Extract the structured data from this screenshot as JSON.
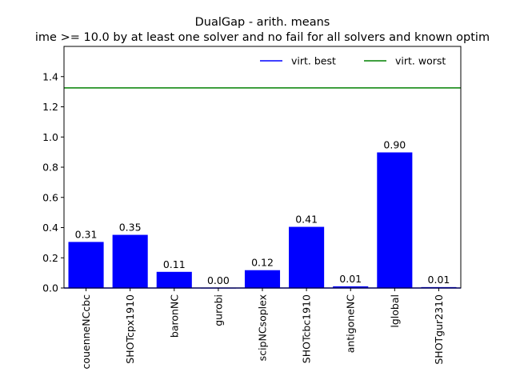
{
  "chart_data": {
    "type": "bar",
    "title": "DualGap - arith. means",
    "subtitle": "ime >= 10.0 by at least one solver and no fail for all solvers and known optim",
    "xlabel": "",
    "ylabel": "",
    "categories": [
      "couenneNCcbc",
      "SHOTcpx1910",
      "baronNC",
      "gurobi",
      "scipNCsoplex",
      "SHOTcbc1910",
      "antigoneNC",
      "lglobal",
      "SHOTgur2310"
    ],
    "values": [
      0.305,
      0.352,
      0.107,
      0.001,
      0.118,
      0.405,
      0.011,
      0.898,
      0.006
    ],
    "data_labels": [
      "0.31",
      "0.35",
      "0.11",
      "0.00",
      "0.12",
      "0.41",
      "0.01",
      "0.90",
      "0.01"
    ],
    "ylim": [
      0,
      1.6
    ],
    "yticks": [
      0.0,
      0.2,
      0.4,
      0.6,
      0.8,
      1.0,
      1.2,
      1.4
    ],
    "ytick_labels": [
      "0.0",
      "0.2",
      "0.4",
      "0.6",
      "0.8",
      "1.0",
      "1.2",
      "1.4"
    ],
    "bar_color": "#0000ff",
    "reference_lines": [
      {
        "name": "virt. best",
        "value": 0.0,
        "color": "#0000ff"
      },
      {
        "name": "virt. worst",
        "value": 1.325,
        "color": "#008000"
      }
    ],
    "legend": {
      "placement": "top-right",
      "columns": 2,
      "frame": false
    },
    "grid": false
  }
}
